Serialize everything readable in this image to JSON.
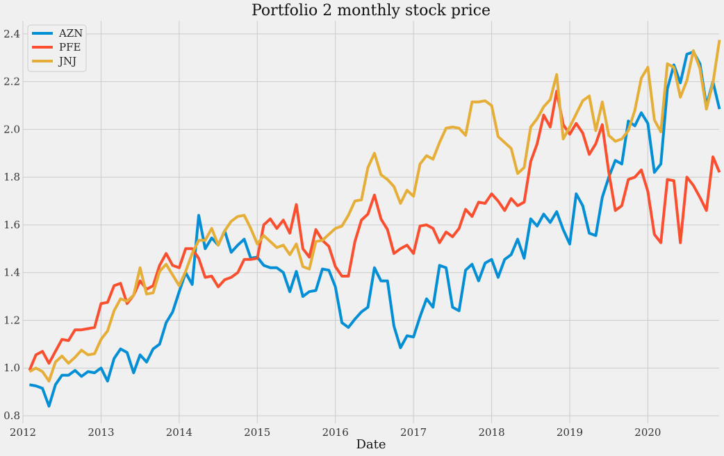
{
  "chart_data": {
    "type": "line",
    "title": "Portfolio 2 monthly stock price",
    "xlabel": "Date",
    "ylabel": "",
    "x_start": "2012-01",
    "x_frequency": "monthly (month-end)",
    "xlim": [
      "2012-01-01",
      "2020-11-30"
    ],
    "ylim": [
      0.768,
      2.455
    ],
    "xticks": [
      "2012",
      "2013",
      "2014",
      "2015",
      "2016",
      "2017",
      "2018",
      "2019",
      "2020"
    ],
    "yticks": [
      "0.8",
      "1.0",
      "1.2",
      "1.4",
      "1.6",
      "1.8",
      "2.0",
      "2.2",
      "2.4"
    ],
    "grid": true,
    "legend_position": "top-left",
    "background": "#f0f0f0",
    "series": [
      {
        "name": "AZN",
        "color": "#008fd5",
        "values": [
          0.93,
          0.925,
          0.915,
          0.84,
          0.93,
          0.97,
          0.97,
          0.99,
          0.965,
          0.985,
          0.98,
          1.0,
          0.945,
          1.04,
          1.08,
          1.065,
          0.98,
          1.055,
          1.025,
          1.08,
          1.1,
          1.19,
          1.235,
          1.32,
          1.4,
          1.35,
          1.64,
          1.5,
          1.545,
          1.515,
          1.575,
          1.485,
          1.515,
          1.54,
          1.46,
          1.465,
          1.43,
          1.42,
          1.42,
          1.4,
          1.32,
          1.405,
          1.3,
          1.32,
          1.325,
          1.415,
          1.41,
          1.34,
          1.19,
          1.17,
          1.205,
          1.235,
          1.255,
          1.42,
          1.365,
          1.365,
          1.175,
          1.085,
          1.135,
          1.13,
          1.215,
          1.29,
          1.255,
          1.43,
          1.42,
          1.255,
          1.24,
          1.41,
          1.435,
          1.365,
          1.44,
          1.455,
          1.38,
          1.455,
          1.475,
          1.54,
          1.46,
          1.625,
          1.595,
          1.645,
          1.61,
          1.655,
          1.58,
          1.52,
          1.73,
          1.68,
          1.565,
          1.555,
          1.715,
          1.8,
          1.87,
          1.855,
          2.035,
          2.015,
          2.07,
          2.025,
          1.82,
          1.855,
          2.17,
          2.27,
          2.195,
          2.315,
          2.325,
          2.275,
          2.1,
          2.2,
          2.085
        ]
      },
      {
        "name": "PFE",
        "color": "#fc4f30",
        "values": [
          0.99,
          1.055,
          1.07,
          1.02,
          1.07,
          1.12,
          1.115,
          1.16,
          1.16,
          1.165,
          1.17,
          1.27,
          1.275,
          1.345,
          1.355,
          1.27,
          1.305,
          1.365,
          1.33,
          1.345,
          1.43,
          1.48,
          1.43,
          1.42,
          1.5,
          1.5,
          1.46,
          1.38,
          1.385,
          1.34,
          1.37,
          1.38,
          1.4,
          1.455,
          1.455,
          1.46,
          1.6,
          1.625,
          1.585,
          1.62,
          1.565,
          1.685,
          1.5,
          1.465,
          1.58,
          1.535,
          1.51,
          1.425,
          1.385,
          1.385,
          1.53,
          1.62,
          1.645,
          1.725,
          1.625,
          1.58,
          1.48,
          1.5,
          1.515,
          1.48,
          1.595,
          1.6,
          1.585,
          1.525,
          1.57,
          1.55,
          1.585,
          1.665,
          1.635,
          1.695,
          1.69,
          1.73,
          1.7,
          1.66,
          1.71,
          1.68,
          1.695,
          1.865,
          1.94,
          2.06,
          2.01,
          2.16,
          2.02,
          1.98,
          2.025,
          1.985,
          1.895,
          1.94,
          2.02,
          1.82,
          1.66,
          1.68,
          1.79,
          1.8,
          1.83,
          1.74,
          1.56,
          1.525,
          1.79,
          1.785,
          1.525,
          1.8,
          1.765,
          1.715,
          1.66,
          1.885,
          1.82
        ]
      },
      {
        "name": "JNJ",
        "color": "#e5ae38",
        "values": [
          0.985,
          1.0,
          0.985,
          0.945,
          1.025,
          1.05,
          1.02,
          1.045,
          1.075,
          1.055,
          1.06,
          1.12,
          1.155,
          1.24,
          1.29,
          1.28,
          1.305,
          1.42,
          1.31,
          1.315,
          1.405,
          1.435,
          1.39,
          1.345,
          1.405,
          1.48,
          1.535,
          1.535,
          1.585,
          1.515,
          1.575,
          1.615,
          1.635,
          1.64,
          1.585,
          1.52,
          1.555,
          1.53,
          1.505,
          1.515,
          1.475,
          1.52,
          1.425,
          1.415,
          1.53,
          1.535,
          1.56,
          1.585,
          1.595,
          1.64,
          1.7,
          1.705,
          1.84,
          1.9,
          1.81,
          1.79,
          1.76,
          1.69,
          1.745,
          1.72,
          1.855,
          1.89,
          1.875,
          1.945,
          2.005,
          2.01,
          2.005,
          1.975,
          2.115,
          2.115,
          2.12,
          2.1,
          1.97,
          1.945,
          1.92,
          1.815,
          1.84,
          2.01,
          2.045,
          2.095,
          2.125,
          2.23,
          1.96,
          2.01,
          2.065,
          2.12,
          2.14,
          1.995,
          2.115,
          1.975,
          1.95,
          1.96,
          1.995,
          2.08,
          2.215,
          2.26,
          2.04,
          1.99,
          2.275,
          2.26,
          2.135,
          2.205,
          2.33,
          2.255,
          2.085,
          2.195,
          2.375
        ]
      }
    ]
  }
}
